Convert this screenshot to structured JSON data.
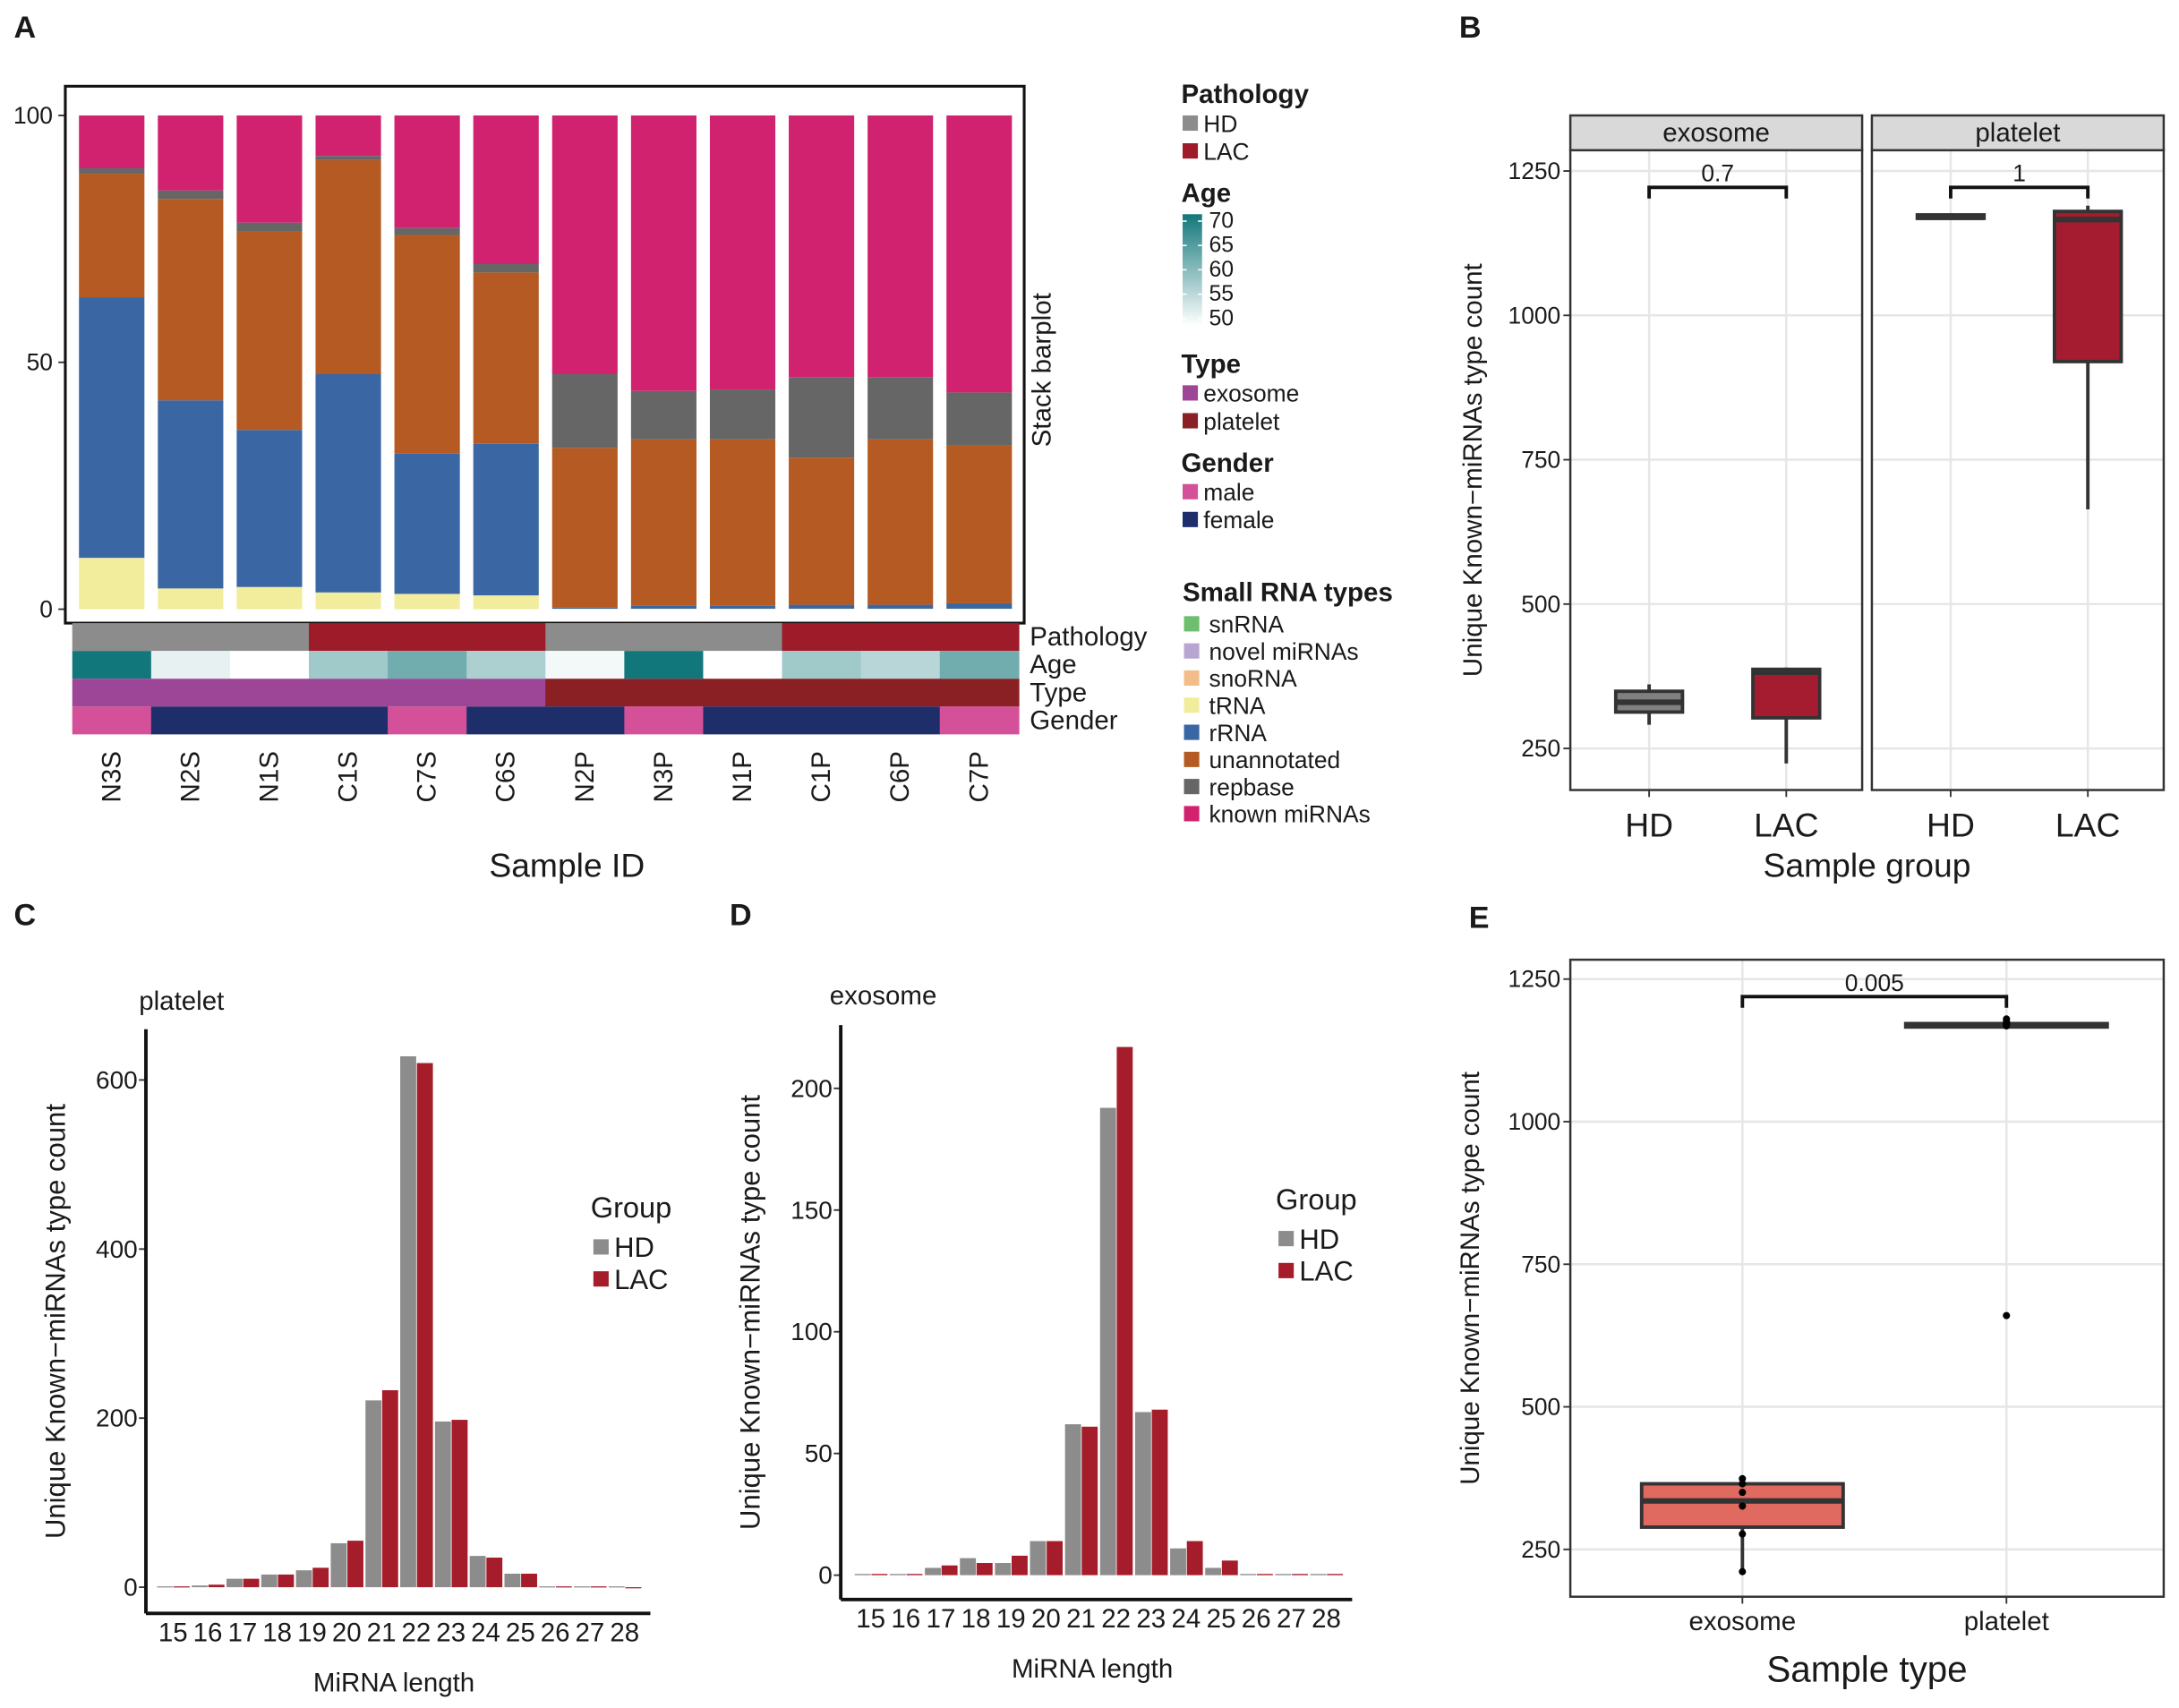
{
  "chart_data": [
    {
      "type": "stacked_bar",
      "panel": "A",
      "ylabel": "Stack barplot",
      "xlabel": "Sample ID",
      "categories": [
        "N3S",
        "N2S",
        "N1S",
        "C1S",
        "C7S",
        "C6S",
        "N2P",
        "N3P",
        "N1P",
        "C1P",
        "C6P",
        "C7P"
      ],
      "ylim": [
        0,
        100
      ],
      "yticks": [
        0,
        50,
        100
      ],
      "annotations": [
        {
          "name": "Pathology",
          "values": [
            "HD",
            "HD",
            "HD",
            "LAC",
            "LAC",
            "LAC",
            "HD",
            "HD",
            "HD",
            "LAC",
            "LAC",
            "LAC"
          ],
          "levels": [
            {
              "name": "HD",
              "color": "#8c8c8c"
            },
            {
              "name": "LAC",
              "color": "#9e1b2a"
            }
          ]
        },
        {
          "name": "Age",
          "values": [
            70,
            52,
            50,
            58,
            62,
            57,
            51,
            70,
            50,
            58,
            56,
            62
          ],
          "scale": {
            "lim": [
              50,
              70
            ],
            "ticks": [
              70,
              65,
              60,
              55,
              50
            ],
            "colors": [
              "#ffffff",
              "#12777a"
            ]
          }
        },
        {
          "name": "Type",
          "values": [
            "exosome",
            "exosome",
            "exosome",
            "exosome",
            "exosome",
            "exosome",
            "platelet",
            "platelet",
            "platelet",
            "platelet",
            "platelet",
            "platelet"
          ],
          "levels": [
            {
              "name": "exosome",
              "color": "#9d4596"
            },
            {
              "name": "platelet",
              "color": "#8a1f24"
            }
          ]
        },
        {
          "name": "Gender",
          "values": [
            "male",
            "female",
            "female",
            "female",
            "male",
            "female",
            "female",
            "male",
            "female",
            "female",
            "female",
            "male"
          ],
          "levels": [
            {
              "name": "male",
              "color": "#d4519a"
            },
            {
              "name": "female",
              "color": "#1e2e6b"
            }
          ]
        }
      ],
      "legend_title": "Small RNA types",
      "series": [
        {
          "name": "snRNA",
          "color": "#6dbf6d",
          "values": [
            0,
            0,
            0,
            0,
            0,
            0,
            0,
            0,
            0,
            0,
            0,
            0
          ]
        },
        {
          "name": "novel miRNAs",
          "color": "#b7a6cf",
          "values": [
            0,
            0,
            0,
            0,
            0,
            0,
            0,
            0,
            0,
            0,
            0,
            0
          ]
        },
        {
          "name": "snoRNA",
          "color": "#f3bd8a",
          "values": [
            0,
            0,
            0,
            0,
            0,
            0,
            0,
            0,
            0,
            0,
            0,
            0
          ]
        },
        {
          "name": "tRNA",
          "color": "#f1ed9d",
          "values": [
            10.4,
            4.2,
            4.5,
            3.4,
            3.1,
            2.8,
            0.1,
            0.1,
            0.1,
            0.1,
            0.1,
            0.1
          ]
        },
        {
          "name": "rRNA",
          "color": "#3a67a3",
          "values": [
            52.7,
            38.1,
            31.8,
            44.2,
            28.4,
            30.7,
            0.2,
            0.6,
            0.6,
            0.8,
            0.8,
            1.1
          ]
        },
        {
          "name": "unannotated",
          "color": "#b45a22",
          "values": [
            25.1,
            40.8,
            40.3,
            43.4,
            44.3,
            34.7,
            32.4,
            33.7,
            33.7,
            29.8,
            33.5,
            32.0
          ]
        },
        {
          "name": "repbase",
          "color": "#666666",
          "values": [
            1.1,
            1.7,
            1.7,
            0.8,
            1.4,
            1.7,
            14.9,
            9.8,
            10.1,
            16.3,
            12.6,
            10.7
          ]
        },
        {
          "name": "known miRNAs",
          "color": "#d0226f",
          "values": [
            10.7,
            15.2,
            21.7,
            8.2,
            22.8,
            30.1,
            52.4,
            55.8,
            55.5,
            53.0,
            53.0,
            56.1
          ]
        }
      ]
    },
    {
      "type": "box",
      "panel": "B",
      "ylabel": "Unique Known−miRNAs type count",
      "xlabel": "Sample group",
      "facets": [
        "exosome",
        "platelet"
      ],
      "groups": [
        "HD",
        "LAC"
      ],
      "colors": [
        "#808080",
        "#a51c30"
      ],
      "ylim": [
        178,
        1286
      ],
      "yticks": [
        250,
        500,
        750,
        1000,
        1250
      ],
      "boxes": [
        [
          {
            "min": 291,
            "q1": 313,
            "median": 330,
            "q3": 349,
            "max": 361
          },
          {
            "min": 224,
            "q1": 303,
            "median": 382,
            "q3": 387,
            "max": 390
          }
        ],
        [
          {
            "min": 1168,
            "q1": 1168,
            "median": 1170,
            "q3": 1174,
            "max": 1176
          },
          {
            "min": 664,
            "q1": 920,
            "median": 1166,
            "q3": 1180,
            "max": 1190
          }
        ]
      ],
      "pvalues": [
        "0.7",
        "1"
      ]
    },
    {
      "type": "bar",
      "panel": "C",
      "title": "platelet",
      "ylabel": "Unique Known−miRNAs type count",
      "xlabel": "MiRNA length",
      "legend_title": "Group",
      "categories": [
        15,
        16,
        17,
        18,
        19,
        20,
        21,
        22,
        23,
        24,
        25,
        26,
        27,
        28
      ],
      "ylim": [
        -31,
        660
      ],
      "yticks": [
        0,
        200,
        400,
        600
      ],
      "series": [
        {
          "name": "HD",
          "color": "#8c8c8c",
          "values": [
            1,
            2,
            10,
            15,
            20,
            52,
            221,
            628,
            196,
            37,
            16,
            1,
            1,
            1
          ]
        },
        {
          "name": "LAC",
          "color": "#a51c2a",
          "values": [
            1,
            3,
            10,
            15,
            23,
            55,
            233,
            620,
            198,
            35,
            16,
            1,
            1,
            0
          ]
        }
      ]
    },
    {
      "type": "bar",
      "panel": "D",
      "title": "exosome",
      "ylabel": "Unique Known−miRNAs type count",
      "xlabel": "MiRNA length",
      "legend_title": "Group",
      "categories": [
        15,
        16,
        17,
        18,
        19,
        20,
        21,
        22,
        23,
        24,
        25,
        26,
        27,
        28
      ],
      "ylim": [
        -10,
        226
      ],
      "yticks": [
        0,
        50,
        100,
        150,
        200
      ],
      "series": [
        {
          "name": "HD",
          "color": "#8c8c8c",
          "values": [
            0.5,
            0.5,
            3,
            7,
            5,
            14,
            62,
            192,
            67,
            11,
            3,
            0.5,
            0.5,
            0.5
          ]
        },
        {
          "name": "LAC",
          "color": "#a51c2a",
          "values": [
            0.5,
            0.5,
            4,
            5,
            8,
            14,
            61,
            217,
            68,
            14,
            6,
            0.5,
            0.5,
            0.5
          ]
        }
      ]
    },
    {
      "type": "box",
      "panel": "E",
      "ylabel": "Unique Known−miRNAs type count",
      "xlabel": "Sample type",
      "categories": [
        "exosome",
        "platelet"
      ],
      "colors": [
        "#e06a60",
        "#e06a60"
      ],
      "ylim": [
        167,
        1284
      ],
      "yticks": [
        250,
        500,
        750,
        1000,
        1250
      ],
      "boxes": [
        {
          "min": 211,
          "q1": 289,
          "median": 335,
          "q3": 365,
          "max": 374
        },
        {
          "min": 1166,
          "q1": 1166,
          "median": 1169,
          "q3": 1172,
          "max": 1176
        }
      ],
      "points": [
        [
          374,
          365,
          350,
          326,
          277,
          211
        ],
        [
          1180,
          1175,
          1172,
          1170,
          1168,
          660
        ]
      ],
      "pvalues": [
        "0.005"
      ]
    }
  ]
}
